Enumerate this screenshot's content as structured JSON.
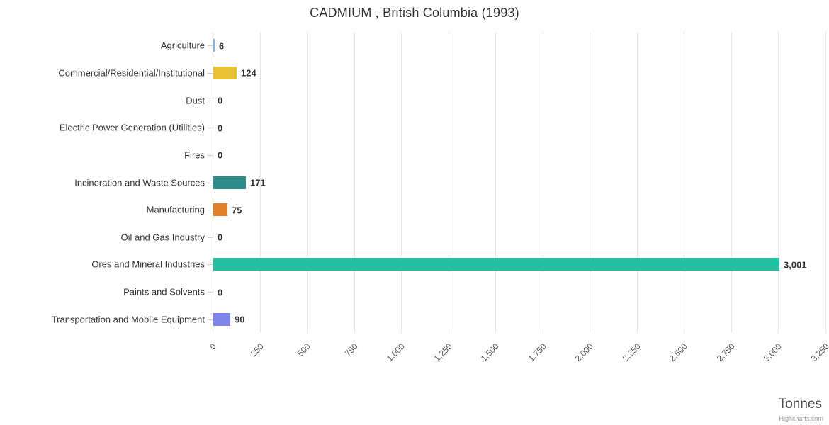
{
  "title": "CADMIUM , British Columbia (1993)",
  "x_axis_title": "Tonnes",
  "credit": "Highcharts.com",
  "chart_data": {
    "type": "bar",
    "orientation": "horizontal",
    "title": "CADMIUM , British Columbia (1993)",
    "xlabel": "Tonnes",
    "ylabel": "",
    "categories": [
      "Agriculture",
      "Commercial/Residential/Institutional",
      "Dust",
      "Electric Power Generation (Utilities)",
      "Fires",
      "Incineration and Waste Sources",
      "Manufacturing",
      "Oil and Gas Industry",
      "Ores and Mineral Industries",
      "Paints and Solvents",
      "Transportation and Mobile Equipment"
    ],
    "values": [
      6,
      124,
      0,
      0,
      0,
      171,
      75,
      0,
      3001,
      0,
      90
    ],
    "value_labels": [
      "6",
      "124",
      "0",
      "0",
      "0",
      "171",
      "75",
      "0",
      "3,001",
      "0",
      "90"
    ],
    "bar_colors": [
      "#7cb5ec",
      "#e9c335",
      "#999999",
      "#999999",
      "#999999",
      "#2d8c8a",
      "#e0802a",
      "#999999",
      "#25bfa2",
      "#999999",
      "#8085e9"
    ],
    "xlim": [
      0,
      3250
    ],
    "xticks": [
      0,
      250,
      500,
      750,
      1000,
      1250,
      1500,
      1750,
      2000,
      2250,
      2500,
      2750,
      3000,
      3250
    ],
    "xtick_labels": [
      "0",
      "250",
      "500",
      "750",
      "1,000",
      "1,250",
      "1,500",
      "1,750",
      "2,000",
      "2,250",
      "2,500",
      "2,750",
      "3,000",
      "3,250"
    ],
    "grid": true,
    "gridline_color": "#e6e6e6",
    "legend": "none"
  }
}
